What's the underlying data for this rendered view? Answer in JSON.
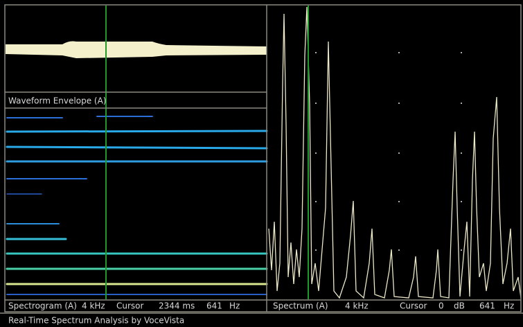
{
  "waveform_panel": {
    "label": "Waveform Envelope (A)"
  },
  "spectrogram_panel": {
    "label": "Spectrogram (A)",
    "range": "4 kHz",
    "cursor_label": "Cursor",
    "cursor_time": "2344 ms",
    "cursor_freq": "641",
    "freq_unit": "Hz"
  },
  "spectrum_panel": {
    "label": "Spectrum (A)",
    "range": "4 kHz",
    "cursor_label": "Cursor",
    "cursor_level": "0",
    "level_unit": "dB",
    "cursor_freq": "641",
    "freq_unit": "Hz"
  },
  "status_bar": "Real-Time Spectrum Analysis by VoceVista"
}
